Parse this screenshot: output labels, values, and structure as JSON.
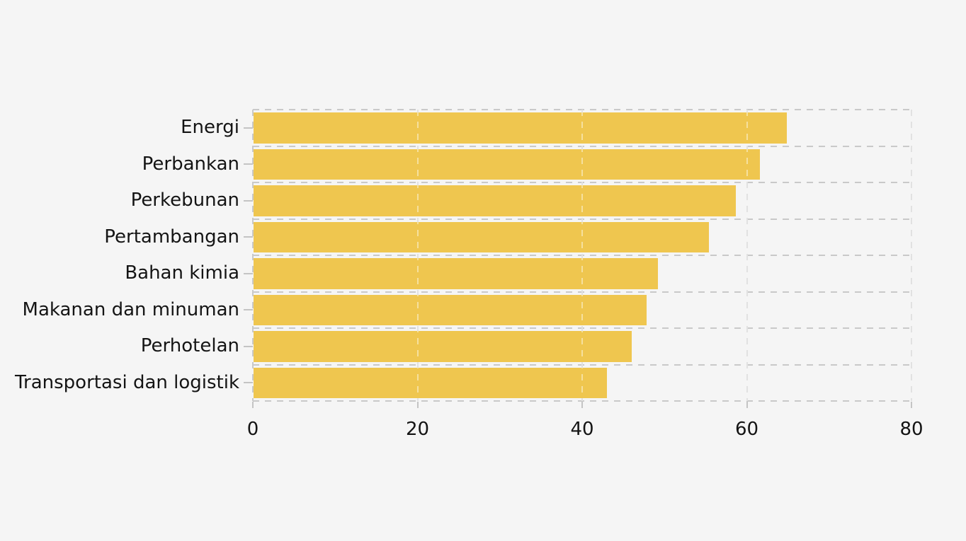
{
  "page": {
    "background_color": "#f5f5f5"
  },
  "chart_data": {
    "type": "bar",
    "orientation": "horizontal",
    "title": "",
    "xlabel": "",
    "ylabel": "",
    "categories": [
      "Energi",
      "Perbankan",
      "Perkebunan",
      "Pertambangan",
      "Bahan kimia",
      "Makanan dan minuman",
      "Perhotelan",
      "Transportasi dan logistik"
    ],
    "values": [
      64.8,
      61.5,
      58.6,
      55.3,
      49.1,
      47.7,
      45.9,
      42.9
    ],
    "xlim": [
      0,
      80
    ],
    "x_ticks": [
      "0",
      "20",
      "40",
      "60",
      "80"
    ],
    "x_tick_values": [
      0,
      20,
      40,
      60,
      80
    ],
    "legend": "none",
    "grid": "dashed, horizontal and vertical",
    "styles": {
      "bar_color": "#efc64f",
      "gridline_color": "#c9c9c9",
      "tick_color": "#c4c4c4",
      "text_color": "#141414",
      "background_color": "#f5f5f5"
    }
  }
}
